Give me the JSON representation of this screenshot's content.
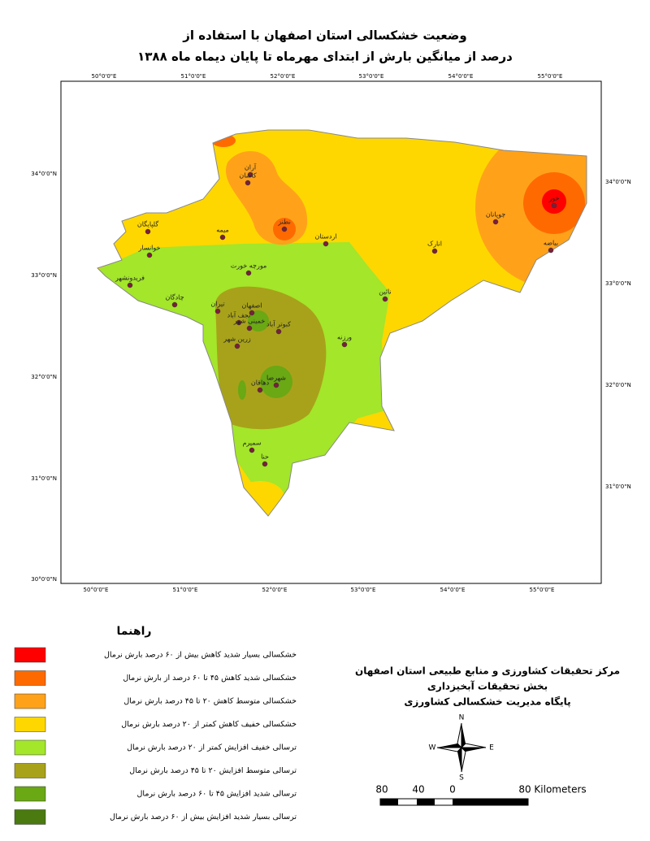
{
  "header": {
    "lines": [
      "وضعیت خشکسالی استان اصفهان با استفاده از",
      "درصد از میانگین بارش از ابتدای مهرماه تا پایان دیماه ماه ۱۳۸۸"
    ]
  },
  "map": {
    "top_longitudes": [
      "50°0'0\"E",
      "51°0'0\"E",
      "52°0'0\"E",
      "53°0'0\"E",
      "54°0'0\"E",
      "55°0'0\"E"
    ],
    "bottom_longitudes": [
      "50°0'0\"E",
      "51°0'0\"E",
      "52°0'0\"E",
      "53°0'0\"E",
      "54°0'0\"E",
      "55°0'0\"E"
    ],
    "left_latitudes": [
      "34°0'0\"N",
      "33°0'0\"N",
      "32°0'0\"N",
      "31°0'0\"N",
      "30°0'0\"N"
    ],
    "right_latitudes": [
      "34°0'0\"N",
      "33°0'0\"N",
      "32°0'0\"N",
      "31°0'0\"N"
    ],
    "cities": [
      "آران",
      "کاشان",
      "نطنز",
      "اردستان",
      "گلپایگان",
      "میمه",
      "خوانسار",
      "انارک",
      "چوپانان",
      "خور",
      "بیاضه",
      "فریدونشهر",
      "مورچه خورت",
      "چادگان",
      "نائین",
      "تیران",
      "اصفهان",
      "نجف آباد",
      "خمینی شهر",
      "کبوتر آباد",
      "ورزنه",
      "زرین شهر",
      "شهرضا",
      "دهاقان",
      "سمیرم",
      "حنا"
    ]
  },
  "legend": {
    "title": "راهنما",
    "items": [
      {
        "label": "خشکسالی بسیار شدید کاهش بیش از ۶۰ درصد بارش نرمال",
        "color": "#ff0000"
      },
      {
        "label": "خشکسالی شدید کاهش ۴۵ تا ۶۰ درصد از بارش نرمال",
        "color": "#ff6a00"
      },
      {
        "label": "خشکسالی متوسط کاهش ۲۰ تا ۴۵ درصد بارش نرمال",
        "color": "#ffa21a"
      },
      {
        "label": "خشکسالی خفیف کاهش کمتر از ۲۰ درصد بارش نرمال",
        "color": "#ffd700"
      },
      {
        "label": "ترسالی خفیف افزایش کمتر از ۲۰ درصد بارش نرمال",
        "color": "#a3e62a"
      },
      {
        "label": "ترسالی متوسط افزایش ۲۰ تا ۴۵ درصد بارش نرمال",
        "color": "#a8a21a"
      },
      {
        "label": "ترسالی شدید افزایش ۴۵ تا ۶۰ درصد بارش نرمال",
        "color": "#6aa814"
      },
      {
        "label": "ترسالی بسیار شدید افزایش بیش از ۶۰ درصد بارش نرمال",
        "color": "#4a7a10"
      }
    ]
  },
  "institute": [
    "مرکز تحقیقات کشاورزی و منابع طبیعی استان اصفهان",
    "بخش تحقیقات آبخیزداری",
    "پایگاه مدیریت خشکسالی کشاورزی"
  ],
  "compass": {
    "north": "N",
    "east": "E",
    "south": "S",
    "west": "W"
  },
  "scale": [
    "80",
    "40",
    "0",
    "80 Kilometers"
  ]
}
